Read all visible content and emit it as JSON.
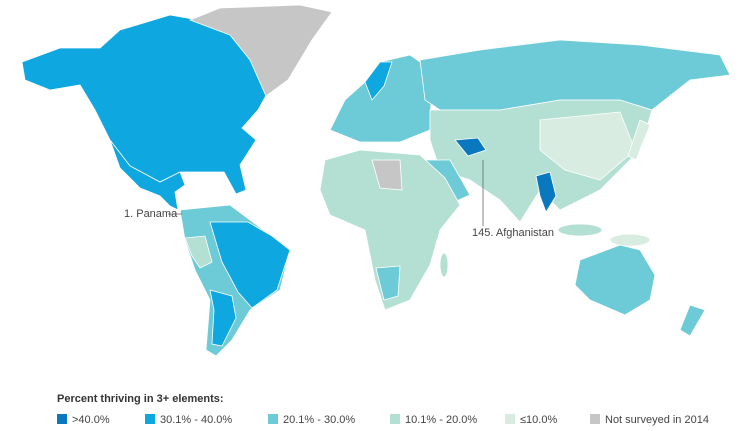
{
  "map": {
    "annotations": [
      "1. Panama",
      "145. Afghanistan"
    ],
    "legend": {
      "title": "Percent thriving in 3+ elements:",
      "items": [
        {
          "label": ">40.0%",
          "color": "#0a78bf"
        },
        {
          "label": "30.1% - 40.0%",
          "color": "#0ea7df"
        },
        {
          "label": "20.1% - 30.0%",
          "color": "#6ccbd7"
        },
        {
          "label": "10.1% - 20.0%",
          "color": "#b4e0d3"
        },
        {
          "label": "≤10.0%",
          "color": "#d8ece1"
        },
        {
          "label": "Not surveyed in 2014",
          "color": "#c6c6c6"
        }
      ]
    }
  }
}
